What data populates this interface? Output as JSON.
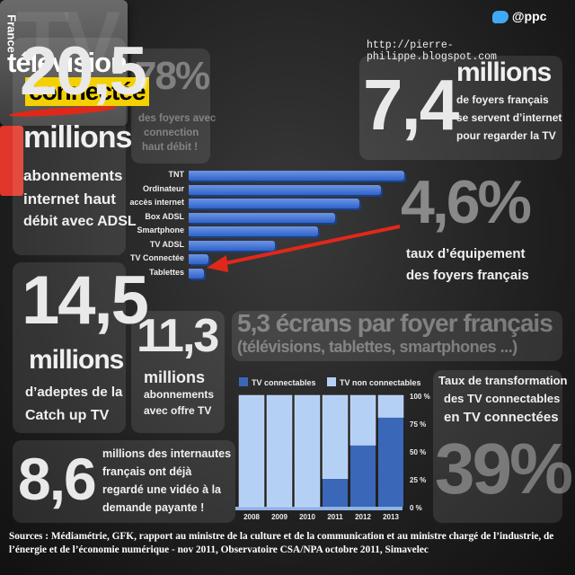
{
  "header": {
    "handle": "@ppc",
    "url": "http://pierre-philippe.blogspot.com"
  },
  "logo": {
    "bg_text": "TV",
    "line1": "télévision",
    "line2": "connectée"
  },
  "stat_adsl": {
    "value": "20,5",
    "unit": "millions",
    "text1": "abonnements",
    "text2": "internet haut",
    "text3": "débit avec ADSL"
  },
  "stat_hd": {
    "value": "78%",
    "text1": "des foyers avec",
    "text2": "connection",
    "text3": "haut débit !"
  },
  "stat_foyers": {
    "value": "7,4",
    "unit": "millions",
    "text1": "de foyers français",
    "text2": "se servent d’internet",
    "text3": "pour regarder la TV"
  },
  "stat_equip": {
    "value": "4,6%",
    "text1": "taux d’équipement",
    "text2": "des foyers français"
  },
  "stat_catchup": {
    "value": "14,5",
    "unit": "millions",
    "text1": "d’adeptes de la",
    "text2": "Catch up TV"
  },
  "stat_abo": {
    "value": "11,3",
    "unit": "millions",
    "text1": "abonnements",
    "text2": "avec offre  TV"
  },
  "stat_ecrans": {
    "line1": "5,3 écrans par foyer français",
    "line2": "(télévisions, tablettes, smartphones ...)"
  },
  "stat_video": {
    "value": "8,6",
    "text1": "millions des internautes",
    "text2": "français ont déjà",
    "text3": "regardé une vidéo à la",
    "text4": "demande payante !"
  },
  "stat_transfo": {
    "text1": "Taux de transformation",
    "text2": "des TV connectables",
    "text3": "en TV connectées",
    "value": "39%"
  },
  "region_tag": "France",
  "bar_chart": {
    "type": "bar",
    "categories": [
      "TNT",
      "Ordinateur",
      "accès internet",
      "Box ADSL",
      "Smartphone",
      "TV ADSL",
      "TV Connectée",
      "Tablettes"
    ],
    "values": [
      100,
      89,
      79,
      68,
      60,
      40,
      9,
      7
    ]
  },
  "chart_data": {
    "type": "bar",
    "categories": [
      "2008",
      "2009",
      "2010",
      "2011",
      "2012",
      "2013"
    ],
    "series": [
      {
        "name": "TV connectables",
        "values": [
          0,
          0,
          0,
          25,
          55,
          80
        ]
      },
      {
        "name": "TV non connectables",
        "values": [
          100,
          100,
          100,
          75,
          45,
          20
        ]
      }
    ],
    "ylim": [
      0,
      100
    ],
    "yticks": [
      "100 %",
      "75 %",
      "50 %",
      "25 %",
      "0 %"
    ],
    "stacked": true
  },
  "sources": "Sources : Médiamétrie, GFK, rapport au ministre de la culture et de la communication et au ministre chargé de l’industrie, de l’énergie et de l’économie numérique - nov 2011, Observatoire CSA/NPA octobre 2011, Simavelec",
  "colors": {
    "dark_blue": "#3a67b8",
    "light_blue": "#b4d0f4",
    "red": "#e0372a",
    "yellow": "#f5d000"
  }
}
